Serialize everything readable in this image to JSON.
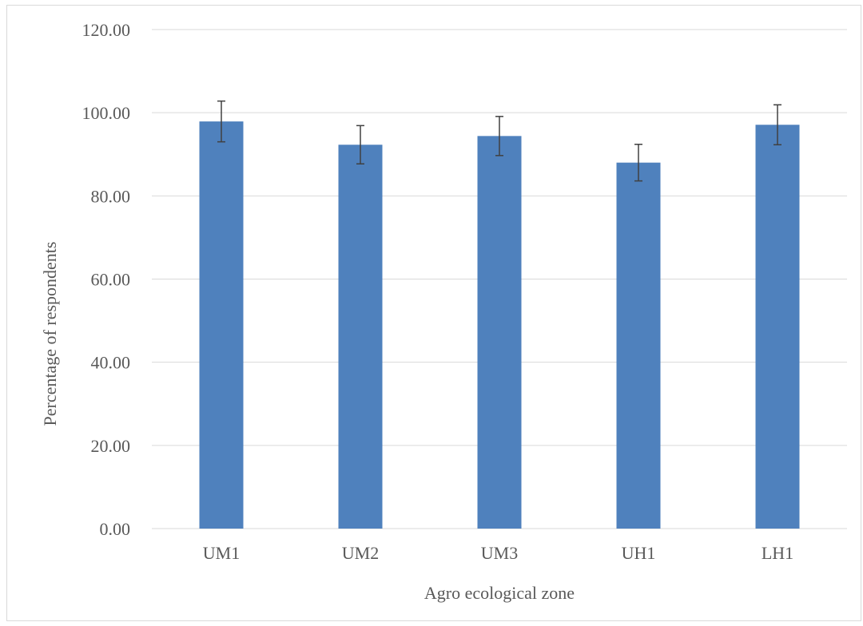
{
  "chart_data": {
    "type": "bar",
    "title": "",
    "xlabel": "Agro ecological zone",
    "ylabel": "Percentage of respondents",
    "categories": [
      "UM1",
      "UM2",
      "UM3",
      "UH1",
      "LH1"
    ],
    "series": [
      {
        "values": [
          97.9,
          92.3,
          94.4,
          88.0,
          97.1
        ],
        "error": [
          4.9,
          4.6,
          4.7,
          4.4,
          4.8
        ]
      }
    ],
    "ylim": [
      0,
      120
    ],
    "yticks": [
      "0.00",
      "20.00",
      "40.00",
      "60.00",
      "80.00",
      "100.00",
      "120.00"
    ],
    "grid": true,
    "legend": "none",
    "colors": {
      "bar": "#4f81bd",
      "grid": "#d9d9d9",
      "error_bar": "#404040",
      "text": "#595959"
    }
  }
}
